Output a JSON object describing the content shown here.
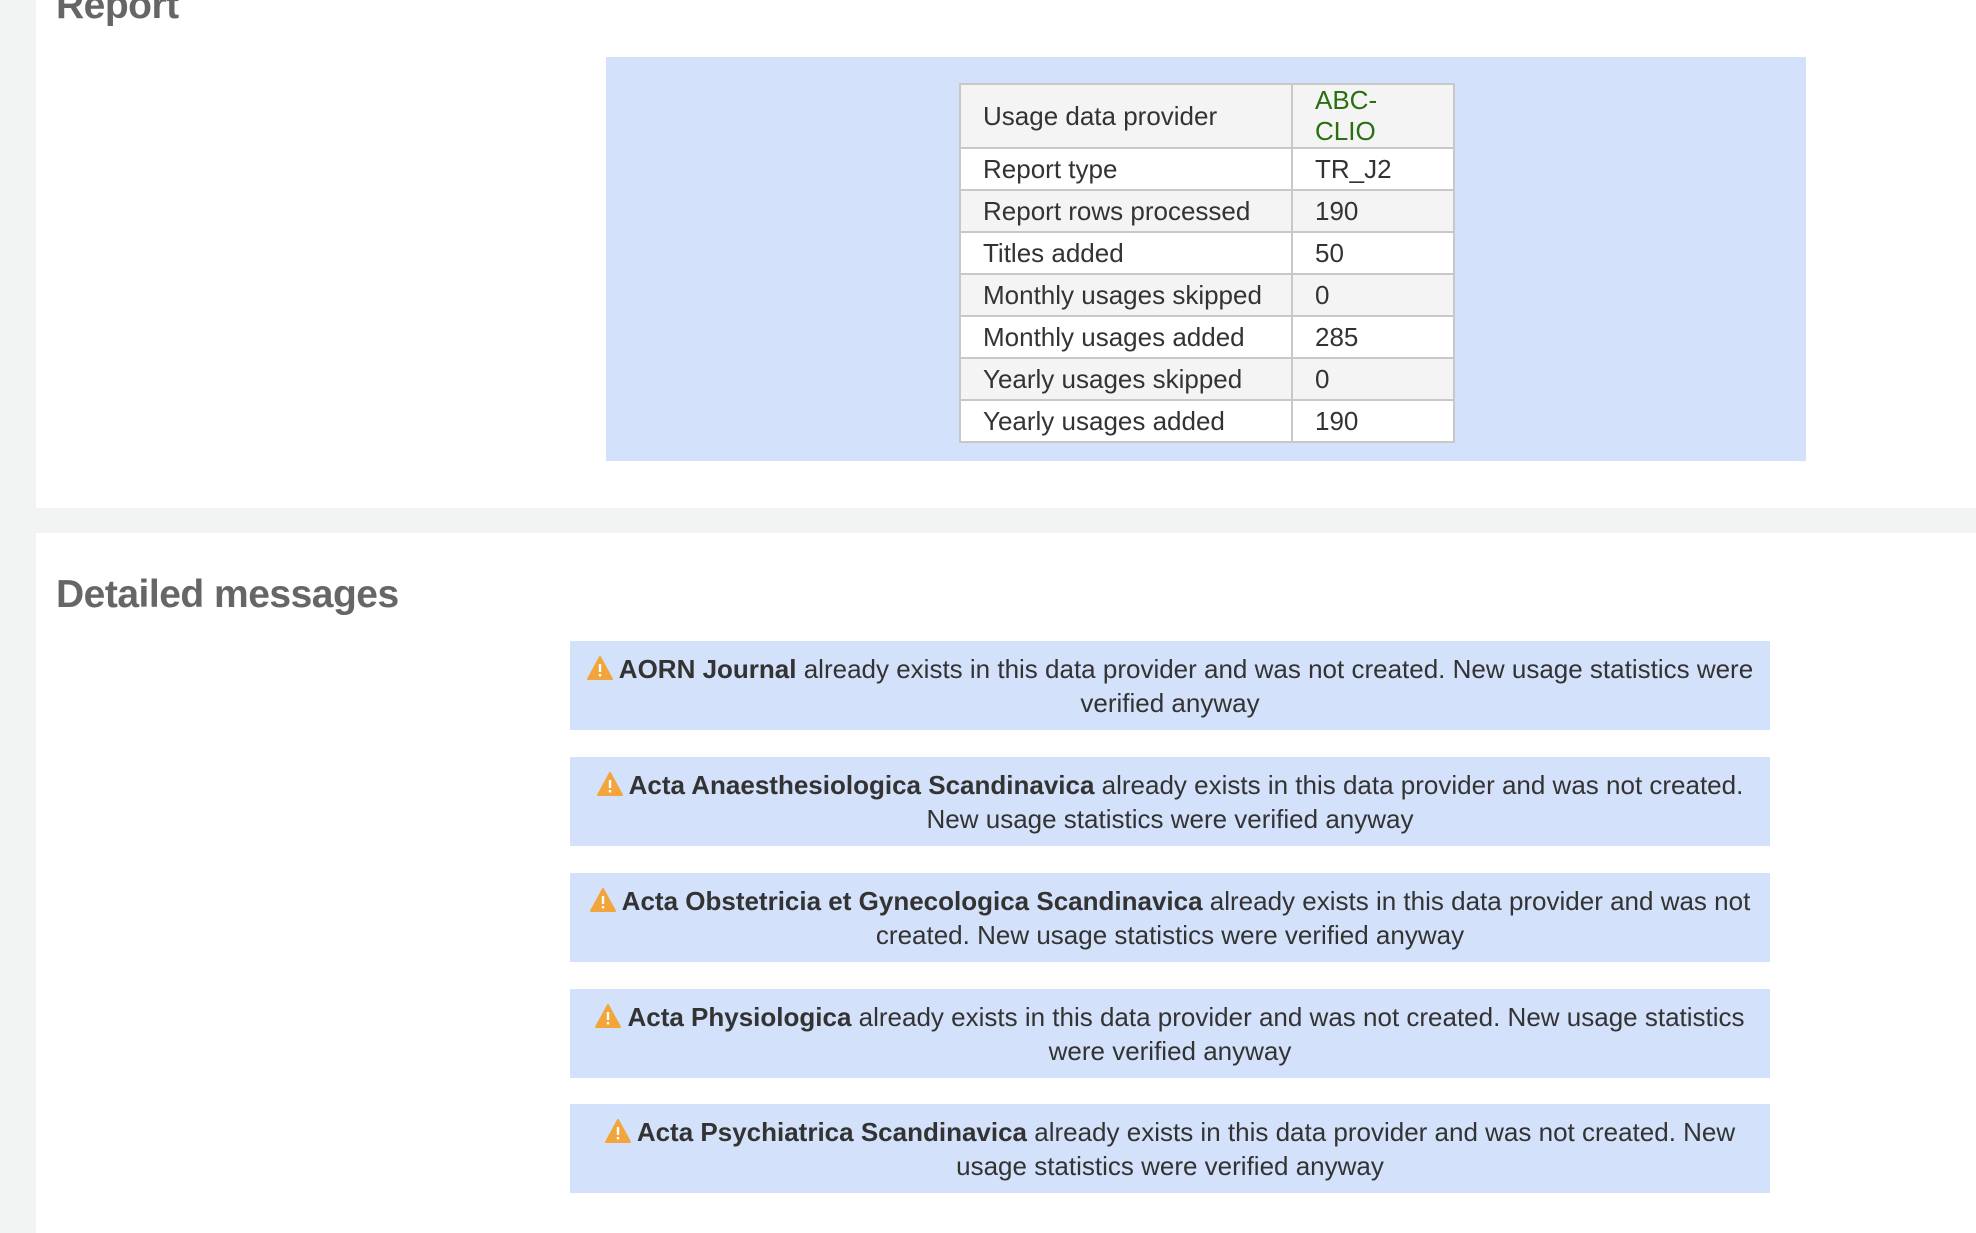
{
  "report": {
    "heading": "Report",
    "rows": [
      {
        "label": "Usage data provider",
        "value": "ABC-CLIO"
      },
      {
        "label": "Report type",
        "value": "TR_J2"
      },
      {
        "label": "Report rows processed",
        "value": "190"
      },
      {
        "label": "Titles added",
        "value": "50"
      },
      {
        "label": "Monthly usages skipped",
        "value": "0"
      },
      {
        "label": "Monthly usages added",
        "value": "285"
      },
      {
        "label": "Yearly usages skipped",
        "value": "0"
      },
      {
        "label": "Yearly usages added",
        "value": "190"
      }
    ],
    "link_color": "#2a6e12"
  },
  "messages": {
    "heading": "Detailed messages",
    "icon": "warning-icon",
    "icon_color": "#f2a53a",
    "items": [
      {
        "title": "AORN Journal",
        "text": " already exists in this data provider and was not created. New usage statistics were verified anyway"
      },
      {
        "title": "Acta Anaesthesiologica Scandinavica",
        "text": " already exists in this data provider and was not created. New usage statistics were verified anyway"
      },
      {
        "title": "Acta Obstetricia et Gynecologica Scandinavica",
        "text": " already exists in this data provider and was not created. New usage statistics were verified anyway"
      },
      {
        "title": "Acta Physiologica",
        "text": " already exists in this data provider and was not created. New usage statistics were verified anyway"
      },
      {
        "title": "Acta Psychiatrica Scandinavica",
        "text": " already exists in this data provider and was not created. New usage statistics were verified anyway"
      }
    ]
  }
}
